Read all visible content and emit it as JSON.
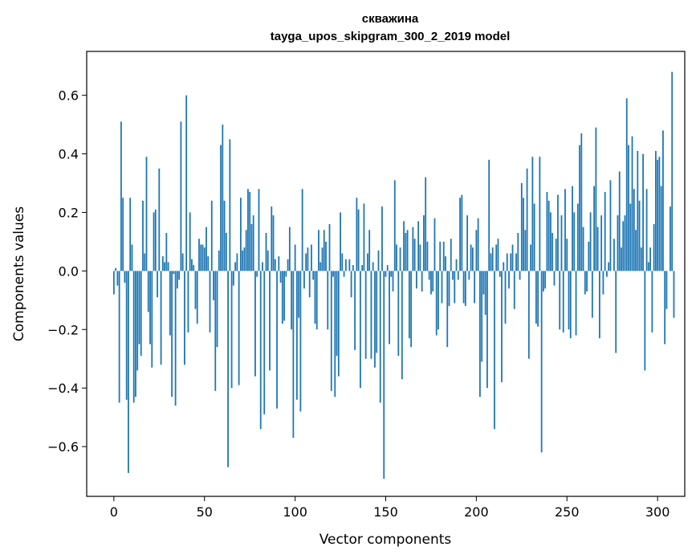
{
  "chart_data": {
    "type": "bar",
    "title": "скважина",
    "subtitle": "tayga_upos_skipgram_300_2_2019 model",
    "xlabel": "Vector components",
    "ylabel": "Components values",
    "xlim": [
      -15,
      315
    ],
    "ylim": [
      -0.77,
      0.75
    ],
    "xticks": [
      0,
      50,
      100,
      150,
      200,
      250,
      300
    ],
    "yticks": [
      -0.6,
      -0.4,
      -0.2,
      0.0,
      0.2,
      0.4,
      0.6
    ],
    "ytick_labels": [
      "−0.6",
      "−0.4",
      "−0.2",
      "0.0",
      "0.2",
      "0.4",
      "0.6"
    ],
    "grid": false,
    "bar_color": "#1f77b4",
    "values": [
      -0.08,
      0.01,
      -0.05,
      -0.45,
      0.51,
      0.25,
      -0.04,
      -0.44,
      -0.69,
      0.25,
      0.09,
      -0.45,
      -0.43,
      -0.34,
      -0.25,
      -0.29,
      0.24,
      0.06,
      0.39,
      -0.14,
      -0.25,
      -0.33,
      0.2,
      0.21,
      -0.09,
      0.35,
      -0.32,
      0.05,
      0.03,
      0.13,
      0.03,
      -0.22,
      -0.43,
      -0.01,
      -0.46,
      -0.06,
      -0.03,
      0.51,
      0.06,
      -0.32,
      0.6,
      -0.21,
      0.2,
      0.04,
      0.02,
      -0.13,
      -0.18,
      0.11,
      0.09,
      0.09,
      0.08,
      0.15,
      0.05,
      -0.21,
      0.24,
      -0.1,
      -0.41,
      -0.26,
      0.07,
      0.43,
      0.5,
      0.24,
      0.13,
      -0.67,
      0.45,
      -0.4,
      -0.05,
      0.03,
      0.06,
      -0.39,
      0.25,
      0.07,
      0.08,
      0.14,
      0.28,
      0.27,
      0.16,
      0.19,
      -0.36,
      -0.02,
      0.28,
      -0.54,
      0.03,
      -0.49,
      0.13,
      0.07,
      -0.34,
      0.22,
      0.19,
      0.04,
      -0.47,
      0.05,
      -0.04,
      -0.18,
      -0.17,
      -0.02,
      0.04,
      0.15,
      -0.2,
      -0.57,
      0.09,
      -0.44,
      -0.16,
      -0.48,
      0.28,
      -0.06,
      0.06,
      0.08,
      -0.09,
      0.09,
      -0.03,
      -0.18,
      -0.2,
      0.14,
      0.03,
      0.08,
      0.14,
      0.1,
      -0.2,
      0.16,
      -0.41,
      -0.02,
      -0.43,
      -0.29,
      -0.36,
      0.2,
      0.06,
      -0.02,
      0.04,
      0.0,
      0.04,
      -0.09,
      0.02,
      -0.27,
      0.25,
      0.21,
      -0.4,
      0.02,
      0.23,
      -0.3,
      0.06,
      0.14,
      -0.3,
      0.03,
      -0.33,
      -0.28,
      0.07,
      -0.45,
      0.22,
      -0.71,
      -0.02,
      0.02,
      -0.25,
      -0.02,
      -0.07,
      0.31,
      0.09,
      -0.29,
      0.08,
      -0.37,
      0.17,
      0.13,
      0.14,
      -0.23,
      -0.26,
      0.15,
      0.11,
      -0.06,
      0.17,
      0.09,
      -0.07,
      0.19,
      0.32,
      0.1,
      -0.03,
      -0.08,
      -0.07,
      0.18,
      -0.22,
      -0.2,
      0.1,
      -0.11,
      0.1,
      0.05,
      -0.26,
      -0.12,
      0.11,
      -0.03,
      -0.11,
      0.04,
      -0.03,
      0.25,
      0.26,
      -0.11,
      -0.12,
      0.19,
      -0.03,
      0.09,
      0.08,
      -0.11,
      0.14,
      0.18,
      -0.43,
      -0.31,
      -0.08,
      -0.15,
      -0.4,
      0.38,
      0.06,
      0.08,
      -0.54,
      0.09,
      0.11,
      -0.02,
      -0.38,
      0.03,
      -0.18,
      0.06,
      -0.06,
      0.06,
      0.09,
      -0.13,
      0.06,
      0.13,
      -0.03,
      0.3,
      0.25,
      0.14,
      0.35,
      -0.3,
      0.09,
      0.39,
      0.23,
      -0.18,
      -0.19,
      0.39,
      -0.62,
      -0.07,
      -0.06,
      0.27,
      0.24,
      0.2,
      0.13,
      -0.05,
      0.11,
      0.26,
      -0.2,
      0.19,
      -0.21,
      0.28,
      0.11,
      -0.2,
      -0.23,
      0.29,
      0.2,
      -0.22,
      0.23,
      0.43,
      0.47,
      0.15,
      -0.08,
      -0.07,
      0.1,
      0.2,
      -0.16,
      0.29,
      0.49,
      0.15,
      -0.23,
      0.19,
      -0.08,
      0.27,
      -0.02,
      0.03,
      0.31,
      0.0,
      0.11,
      -0.28,
      0.19,
      0.34,
      0.08,
      0.17,
      0.19,
      0.59,
      0.43,
      0.23,
      0.46,
      0.28,
      0.14,
      0.41,
      0.24,
      0.08,
      0.4,
      -0.34,
      0.28,
      0.03,
      0.08,
      -0.21,
      0.16,
      0.41,
      0.38,
      0.39,
      0.29,
      0.48,
      -0.25,
      -0.13,
      0.0,
      0.22,
      0.68,
      -0.16
    ]
  }
}
